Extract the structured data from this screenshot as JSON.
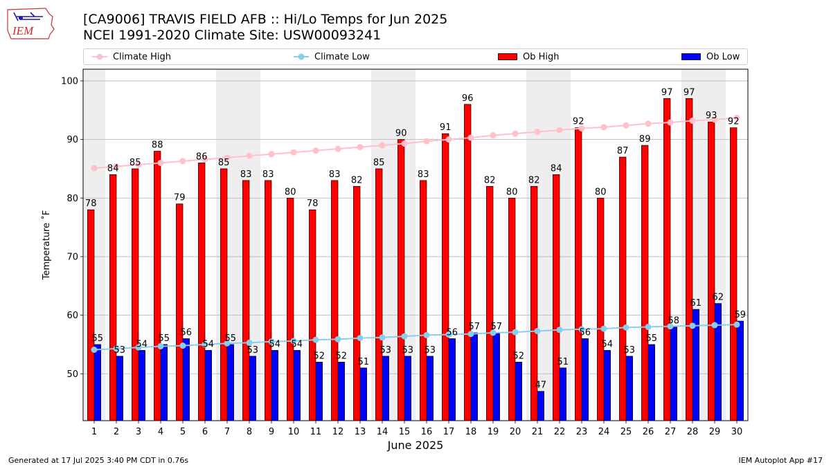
{
  "title": "[CA9006] TRAVIS FIELD AFB :: Hi/Lo Temps for Jun 2025",
  "subtitle": "NCEI 1991-2020 Climate Site: USW00093241",
  "logo_text": "IEM",
  "footer_left": "Generated at 17 Jul 2025 3:40 PM CDT in 0.76s",
  "footer_right": "IEM Autoplot App #17",
  "colors": {
    "ob_high": "#ff0000",
    "ob_low": "#0000ff",
    "climate_high": "#ffc0cb",
    "climate_low": "#87ceeb",
    "weekend_shade": "#eeeeee",
    "grid": "#b0b0b0"
  },
  "chart_data": {
    "type": "bar",
    "title": "[CA9006] TRAVIS FIELD AFB :: Hi/Lo Temps for Jun 2025",
    "xlabel": "June 2025",
    "ylabel": "Temperature ˚F",
    "ylim": [
      42,
      102
    ],
    "yticks": [
      50,
      60,
      70,
      80,
      90,
      100
    ],
    "grid": "y-major",
    "legend_position": "top, across",
    "shaded_days": [
      1,
      7,
      8,
      14,
      15,
      21,
      22,
      28,
      29
    ],
    "categories": [
      "1",
      "2",
      "3",
      "4",
      "5",
      "6",
      "7",
      "8",
      "9",
      "10",
      "11",
      "12",
      "13",
      "14",
      "15",
      "16",
      "17",
      "18",
      "19",
      "20",
      "21",
      "22",
      "23",
      "24",
      "25",
      "26",
      "27",
      "28",
      "29",
      "30"
    ],
    "series": [
      {
        "name": "Ob High",
        "kind": "bar",
        "values": [
          78,
          84,
          85,
          88,
          79,
          86,
          85,
          83,
          83,
          80,
          78,
          83,
          82,
          85,
          90,
          83,
          91,
          96,
          82,
          80,
          82,
          84,
          92,
          80,
          87,
          89,
          97,
          97,
          93,
          92
        ]
      },
      {
        "name": "Ob Low",
        "kind": "bar",
        "values": [
          55,
          53,
          54,
          55,
          56,
          54,
          55,
          53,
          54,
          54,
          52,
          52,
          51,
          53,
          53,
          53,
          56,
          57,
          57,
          52,
          47,
          51,
          56,
          54,
          53,
          55,
          58,
          61,
          62,
          59
        ]
      },
      {
        "name": "Climate High",
        "kind": "line",
        "values": [
          85.1,
          85.4,
          85.7,
          86.0,
          86.3,
          86.6,
          86.9,
          87.2,
          87.5,
          87.8,
          88.1,
          88.4,
          88.7,
          89.0,
          89.3,
          89.7,
          90.0,
          90.3,
          90.7,
          91.0,
          91.3,
          91.6,
          91.9,
          92.1,
          92.4,
          92.7,
          92.9,
          93.2,
          93.4,
          93.7
        ]
      },
      {
        "name": "Climate Low",
        "kind": "line",
        "values": [
          54.1,
          54.3,
          54.5,
          54.7,
          54.8,
          55.0,
          55.2,
          55.3,
          55.5,
          55.6,
          55.8,
          55.9,
          56.1,
          56.2,
          56.4,
          56.6,
          56.7,
          56.8,
          57.0,
          57.1,
          57.3,
          57.5,
          57.6,
          57.7,
          57.9,
          58.0,
          58.1,
          58.2,
          58.3,
          58.4
        ]
      }
    ]
  }
}
